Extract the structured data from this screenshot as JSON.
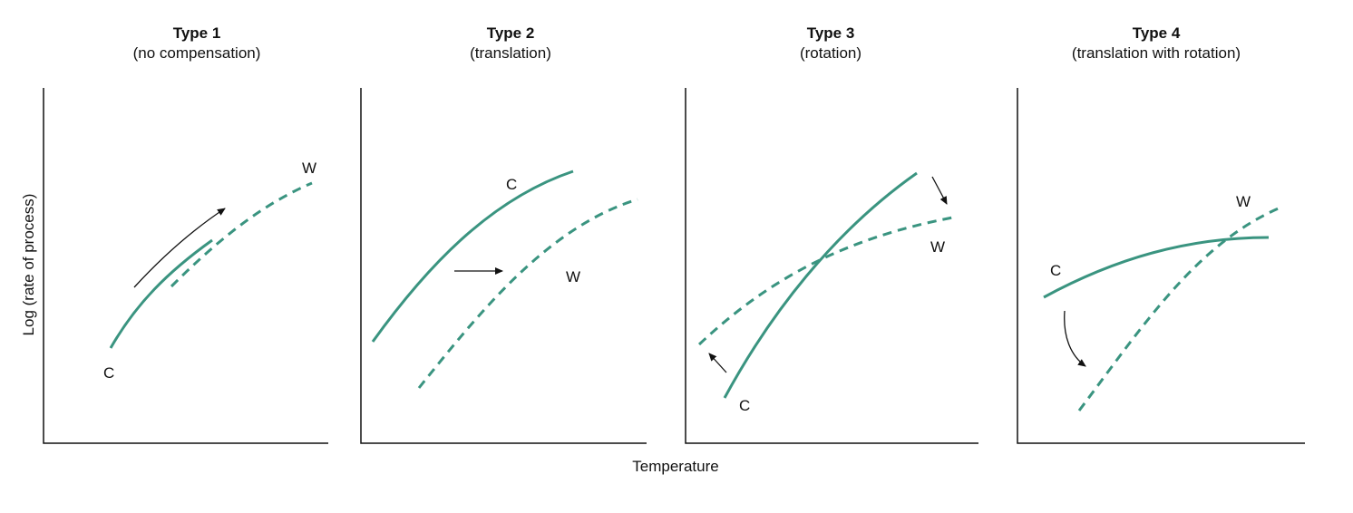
{
  "colors": {
    "curve": "#3a9480",
    "axis": "#111111",
    "arrow": "#111111"
  },
  "panels": [
    {
      "title": "Type 1",
      "subtitle": "(no compensation)",
      "label_c": "C",
      "label_w": "W"
    },
    {
      "title": "Type 2",
      "subtitle": "(translation)",
      "label_c": "C",
      "label_w": "W"
    },
    {
      "title": "Type 3",
      "subtitle": "(rotation)",
      "label_c": "C",
      "label_w": "W"
    },
    {
      "title": "Type 4",
      "subtitle": "(translation with rotation)",
      "label_c": "C",
      "label_w": "W"
    }
  ],
  "x_axis_label": "Temperature",
  "y_axis_label": "Log (rate of process)"
}
